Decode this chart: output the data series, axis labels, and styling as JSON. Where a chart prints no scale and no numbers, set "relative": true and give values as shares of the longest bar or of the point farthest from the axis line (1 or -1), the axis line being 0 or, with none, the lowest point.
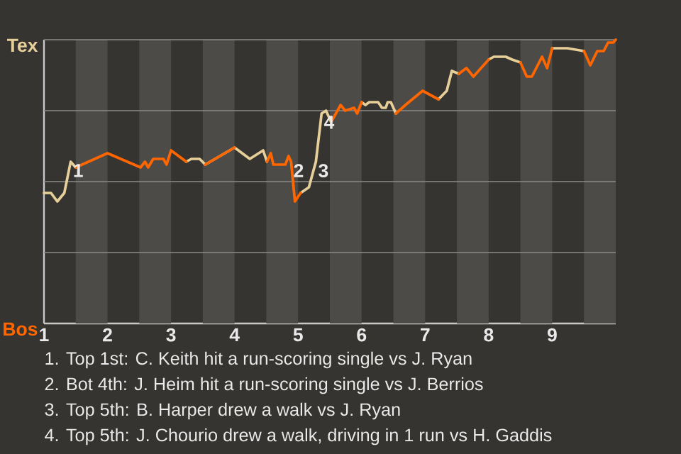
{
  "chart_data": {
    "type": "line",
    "relative": true,
    "x": [
      1,
      1.11,
      1.21,
      1.32,
      1.42,
      1.5,
      2,
      2.52,
      2.59,
      2.64,
      2.72,
      2.88,
      2.93,
      3,
      3.24,
      3.32,
      3.45,
      3.54,
      4,
      4.24,
      4.45,
      4.51,
      4.57,
      4.61,
      4.8,
      4.85,
      4.89,
      4.95,
      5.04,
      5.17,
      5.28,
      5.37,
      5.44,
      5.52,
      5.67,
      5.74,
      5.88,
      5.93,
      6,
      6.06,
      6.12,
      6.26,
      6.32,
      6.38,
      6.41,
      6.46,
      6.54,
      6.69,
      6.96,
      7.21,
      7.34,
      7.42,
      7.53,
      7.65,
      7.76,
      8,
      8.08,
      8.27,
      8.37,
      8.5,
      8.6,
      8.68,
      8.84,
      8.92,
      9,
      9.24,
      9.5,
      9.6,
      9.71,
      9.81,
      9.88,
      9.96,
      10
    ],
    "series": [
      {
        "name": "Tex",
        "color": "#e6cf98",
        "values": [
          0.46,
          0.46,
          0.43,
          0.46,
          0.57,
          0.55,
          null,
          null,
          null,
          null,
          null,
          null,
          null,
          null,
          0.57,
          0.58,
          0.58,
          0.56,
          0.62,
          0.58,
          0.61,
          0.57,
          null,
          null,
          null,
          null,
          null,
          null,
          0.46,
          0.48,
          0.57,
          0.74,
          0.75,
          0.71,
          null,
          null,
          null,
          null,
          0.78,
          0.77,
          0.78,
          0.78,
          0.76,
          0.76,
          0.78,
          0.78,
          0.74,
          null,
          null,
          0.79,
          0.82,
          0.89,
          0.88,
          null,
          null,
          0.93,
          0.94,
          0.94,
          0.93,
          0.92,
          null,
          null,
          null,
          null,
          0.97,
          0.97,
          0.96,
          null,
          null,
          null,
          null,
          null,
          null
        ]
      },
      {
        "name": "Bos",
        "color": "#ff6600",
        "values": [
          null,
          null,
          null,
          null,
          null,
          0.55,
          0.6,
          0.55,
          0.57,
          0.55,
          0.58,
          0.58,
          0.56,
          0.61,
          0.57,
          null,
          null,
          0.56,
          0.62,
          null,
          null,
          0.57,
          0.6,
          0.56,
          0.56,
          0.59,
          0.57,
          0.43,
          0.46,
          null,
          null,
          null,
          null,
          0.71,
          0.77,
          0.75,
          0.76,
          0.74,
          0.78,
          null,
          null,
          null,
          null,
          null,
          null,
          null,
          0.74,
          0.77,
          0.82,
          0.79,
          null,
          null,
          0.88,
          0.9,
          0.87,
          0.93,
          null,
          null,
          null,
          0.92,
          0.87,
          0.87,
          0.94,
          0.9,
          0.97,
          null,
          0.96,
          0.91,
          0.96,
          0.96,
          0.99,
          0.99,
          1
        ]
      }
    ],
    "xlim": [
      1,
      10
    ],
    "xticks": [
      1,
      2,
      3,
      4,
      5,
      6,
      7,
      8,
      9
    ],
    "ref_lines": [
      {
        "axis": "y",
        "value": 0.25,
        "color": "#8a8a8a"
      },
      {
        "axis": "y",
        "value": 0.5,
        "color": "#8a8a8a"
      },
      {
        "axis": "y",
        "value": 0.75,
        "color": "#8a8a8a"
      },
      {
        "axis": "y",
        "value": 1,
        "color": "#8a8a8a"
      }
    ],
    "bands": [
      {
        "axis": "x",
        "from": 1.5,
        "to": 2,
        "color": "#4c4b48"
      },
      {
        "axis": "x",
        "from": 2.5,
        "to": 3,
        "color": "#4c4b48"
      },
      {
        "axis": "x",
        "from": 3.5,
        "to": 4,
        "color": "#4c4b48"
      },
      {
        "axis": "x",
        "from": 4.5,
        "to": 5,
        "color": "#4c4b48"
      },
      {
        "axis": "x",
        "from": 5.5,
        "to": 6,
        "color": "#4c4b48"
      },
      {
        "axis": "x",
        "from": 6.5,
        "to": 7,
        "color": "#4c4b48"
      },
      {
        "axis": "x",
        "from": 7.5,
        "to": 8,
        "color": "#4c4b48"
      },
      {
        "axis": "x",
        "from": 8.5,
        "to": 9,
        "color": "#4c4b48"
      },
      {
        "axis": "x",
        "from": 9.5,
        "to": 10,
        "color": "#4c4b48"
      }
    ],
    "annotations": [
      {
        "text": "1",
        "x": 1.42,
        "y": 0.57
      },
      {
        "text": "2",
        "x": 4.89,
        "y": 0.57
      },
      {
        "text": "3",
        "x": 5.28,
        "y": 0.57
      },
      {
        "text": "4",
        "x": 5.37,
        "y": 0.74
      },
      "1. Top 1st: C. Keith hit a run-scoring single vs J. Ryan",
      "2. Bot 4th: J. Heim hit a run-scoring single vs J. Berrios",
      "3. Top 5th: B. Harper drew a walk vs J. Ryan",
      "4. Top 5th: J. Chourio drew a walk, driving in 1 run vs H. Gaddis"
    ]
  }
}
